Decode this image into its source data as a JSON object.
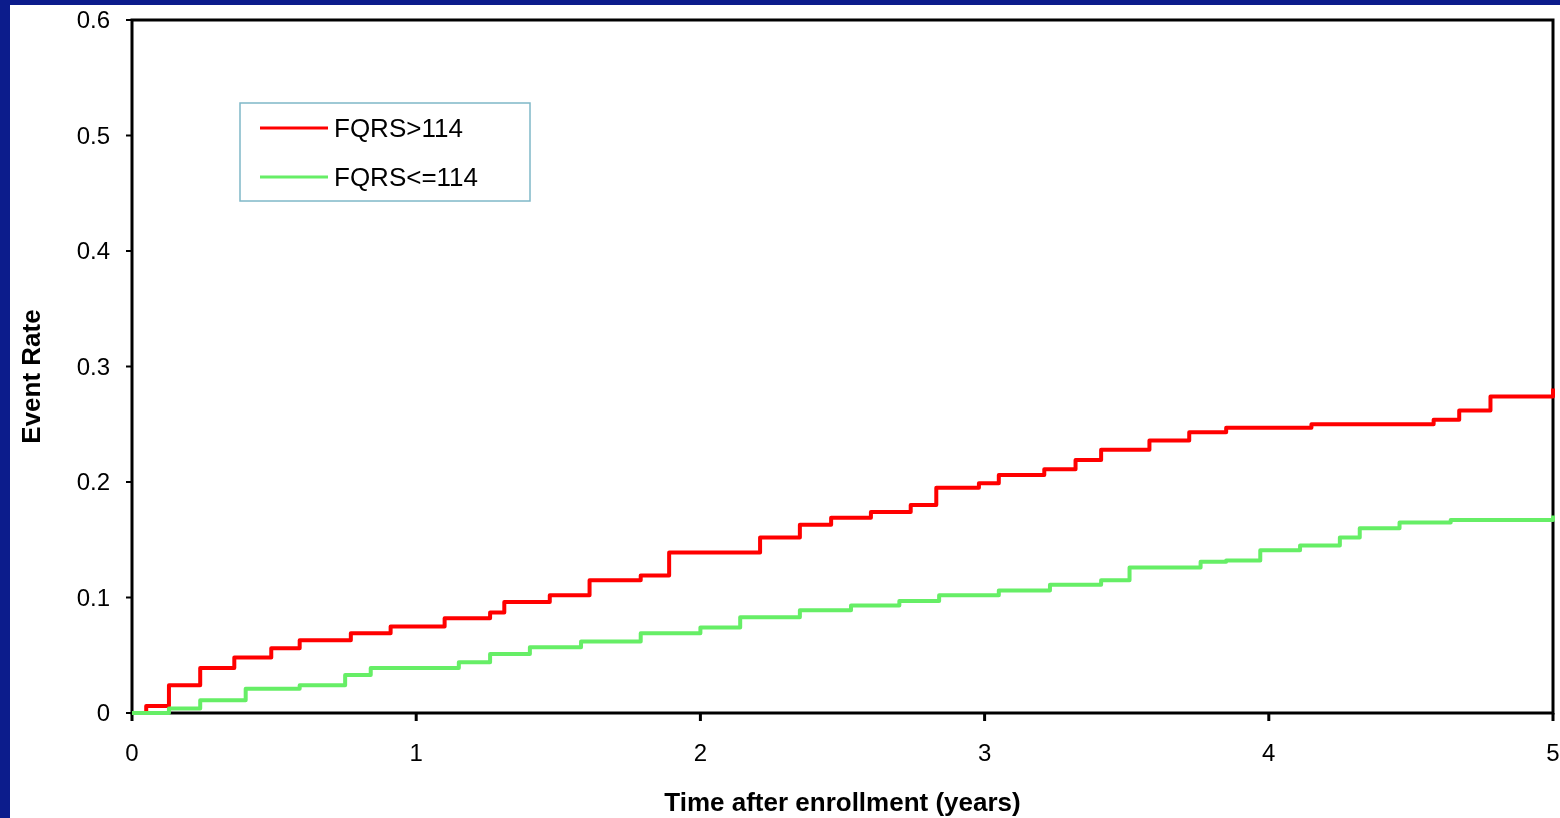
{
  "chart_data": {
    "type": "step",
    "xlabel": "Time after enrollment (years)",
    "ylabel": "Event Rate",
    "xlim": [
      0,
      5
    ],
    "xticks": [
      0,
      1,
      2,
      3,
      4,
      5
    ],
    "ylim": [
      0,
      0.6
    ],
    "yticks": [
      0,
      0.1,
      0.2,
      0.3,
      0.4,
      0.5,
      0.6
    ],
    "grid": false,
    "legend": "top left",
    "marker": "none",
    "line_style": "solid",
    "series": [
      {
        "name": "FQRS>114",
        "color": "#ff0000",
        "x": [
          0,
          0.05,
          0.13,
          0.24,
          0.36,
          0.49,
          0.59,
          0.77,
          0.91,
          1.1,
          1.26,
          1.31,
          1.47,
          1.61,
          1.79,
          1.89,
          2.07,
          2.21,
          2.35,
          2.46,
          2.6,
          2.74,
          2.83,
          2.98,
          3.05,
          3.21,
          3.32,
          3.41,
          3.58,
          3.72,
          3.85,
          4.15,
          4.58,
          4.67,
          4.78,
          4.98,
          5
        ],
        "values": [
          0,
          0.006,
          0.024,
          0.039,
          0.048,
          0.056,
          0.063,
          0.069,
          0.075,
          0.082,
          0.087,
          0.096,
          0.102,
          0.115,
          0.119,
          0.139,
          0.139,
          0.152,
          0.163,
          0.169,
          0.174,
          0.18,
          0.195,
          0.199,
          0.206,
          0.211,
          0.219,
          0.228,
          0.236,
          0.243,
          0.247,
          0.25,
          0.254,
          0.262,
          0.274,
          0.274,
          0.281
        ]
      },
      {
        "name": "FQRS<=114",
        "color": "#66ee66",
        "x": [
          0,
          0.13,
          0.24,
          0.4,
          0.59,
          0.75,
          0.84,
          1.05,
          1.15,
          1.26,
          1.4,
          1.58,
          1.79,
          2,
          2.14,
          2.35,
          2.53,
          2.7,
          2.84,
          3.05,
          3.23,
          3.41,
          3.51,
          3.76,
          3.85,
          3.97,
          4.11,
          4.25,
          4.32,
          4.46,
          4.64,
          4.97,
          5
        ],
        "values": [
          0,
          0.004,
          0.011,
          0.021,
          0.024,
          0.033,
          0.039,
          0.039,
          0.044,
          0.051,
          0.057,
          0.062,
          0.069,
          0.074,
          0.083,
          0.089,
          0.093,
          0.097,
          0.102,
          0.106,
          0.111,
          0.115,
          0.126,
          0.131,
          0.132,
          0.141,
          0.145,
          0.152,
          0.16,
          0.165,
          0.167,
          0.167,
          0.171
        ]
      }
    ]
  }
}
